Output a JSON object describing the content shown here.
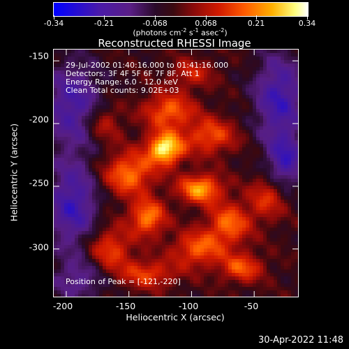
{
  "colorbar": {
    "ticks": [
      "-0.34",
      "-0.21",
      "-0.068",
      "0.068",
      "0.21",
      "0.34"
    ],
    "tick_values": [
      -0.34,
      -0.21,
      -0.068,
      0.068,
      0.21,
      0.34
    ],
    "unit_prefix": "(photons cm",
    "unit_sup1": "-2",
    "unit_mid1": " s",
    "unit_sup2": "-1",
    "unit_mid2": " asec",
    "unit_sup3": "-2",
    "unit_suffix": ")"
  },
  "info": {
    "time_range": "29-Jul-2002 01:40:16.000 to 01:41:16.000",
    "detectors": "Detectors: 3F 4F 5F 6F 7F 8F, Att 1",
    "energy": "Energy Range: 6.0 - 12.0 keV",
    "method": "Clean     Total counts: 9.02E+03",
    "peak": "Position of Peak = [-121,-220]"
  },
  "timestamp": "30-Apr-2022 11:48",
  "chart_data": {
    "type": "heatmap",
    "title": "Reconstructed RHESSI Image",
    "xlabel": "Heliocentric X (arcsec)",
    "ylabel": "Heliocentric Y (arcsec)",
    "xlim": [
      -210,
      -15
    ],
    "ylim": [
      -338,
      -141
    ],
    "x_ticks": [
      -200,
      -150,
      -100,
      -50
    ],
    "y_ticks": [
      -150,
      -200,
      -250,
      -300
    ],
    "x_tick_labels": [
      "-200",
      "-150",
      "-100",
      "-50"
    ],
    "y_tick_labels": [
      "-150",
      "-200",
      "-250",
      "-300"
    ],
    "zlim": [
      -0.34,
      0.34
    ],
    "peak": {
      "x": -121,
      "y": -220
    },
    "blobs": [
      {
        "x": -121,
        "y": -220,
        "amp": 0.34,
        "sx": 10,
        "sy": 9
      },
      {
        "x": -93,
        "y": -252,
        "amp": 0.26,
        "sx": 12,
        "sy": 8
      },
      {
        "x": -135,
        "y": -275,
        "amp": 0.23,
        "sx": 10,
        "sy": 10
      },
      {
        "x": -118,
        "y": -190,
        "amp": 0.2,
        "sx": 14,
        "sy": 10
      },
      {
        "x": -150,
        "y": -240,
        "amp": 0.22,
        "sx": 14,
        "sy": 12
      },
      {
        "x": -95,
        "y": -300,
        "amp": 0.19,
        "sx": 14,
        "sy": 10
      },
      {
        "x": -70,
        "y": -280,
        "amp": 0.2,
        "sx": 12,
        "sy": 12
      },
      {
        "x": -60,
        "y": -315,
        "amp": 0.18,
        "sx": 12,
        "sy": 8
      },
      {
        "x": -165,
        "y": -300,
        "amp": 0.17,
        "sx": 12,
        "sy": 12
      },
      {
        "x": -85,
        "y": -210,
        "amp": 0.18,
        "sx": 14,
        "sy": 10
      },
      {
        "x": -135,
        "y": -320,
        "amp": 0.16,
        "sx": 16,
        "sy": 8
      },
      {
        "x": -40,
        "y": -260,
        "amp": 0.14,
        "sx": 10,
        "sy": 12
      },
      {
        "x": -170,
        "y": -200,
        "amp": 0.12,
        "sx": 10,
        "sy": 10
      },
      {
        "x": -100,
        "y": -160,
        "amp": 0.12,
        "sx": 12,
        "sy": 8
      },
      {
        "x": -195,
        "y": -185,
        "amp": -0.18,
        "sx": 16,
        "sy": 24
      },
      {
        "x": -195,
        "y": -265,
        "amp": -0.2,
        "sx": 14,
        "sy": 25
      },
      {
        "x": -30,
        "y": -180,
        "amp": -0.2,
        "sx": 14,
        "sy": 25
      },
      {
        "x": -25,
        "y": -230,
        "amp": -0.18,
        "sx": 10,
        "sy": 15
      },
      {
        "x": -190,
        "y": -325,
        "amp": -0.12,
        "sx": 16,
        "sy": 12
      }
    ]
  }
}
